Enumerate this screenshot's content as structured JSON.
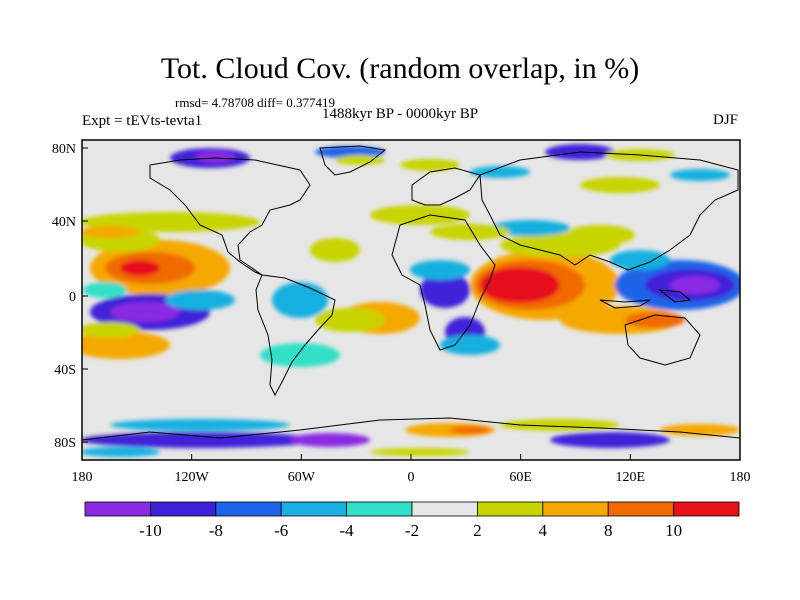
{
  "title": "Tot. Cloud Cov. (random overlap, in %)",
  "stats": "rmsd= 4.78708 diff= 0.377419",
  "period": "1488kyr BP - 0000kyr BP",
  "expt": "Expt = tEVts-tevta1",
  "season": "DJF",
  "x_ticks": [
    "180",
    "120W",
    "60W",
    "0",
    "60E",
    "120E",
    "180"
  ],
  "y_ticks": [
    "80N",
    "40N",
    "0",
    "40S",
    "80S"
  ],
  "colorbar": {
    "labels": [
      "-10",
      "-8",
      "-6",
      "-4",
      "-2",
      "2",
      "4",
      "8",
      "10"
    ],
    "colors": [
      "#8a2be2",
      "#3f20d8",
      "#1e63e8",
      "#18b0e0",
      "#30e0c8",
      "#e6e6e6",
      "#c8d400",
      "#f5a800",
      "#f06a00",
      "#e8101a"
    ]
  }
}
